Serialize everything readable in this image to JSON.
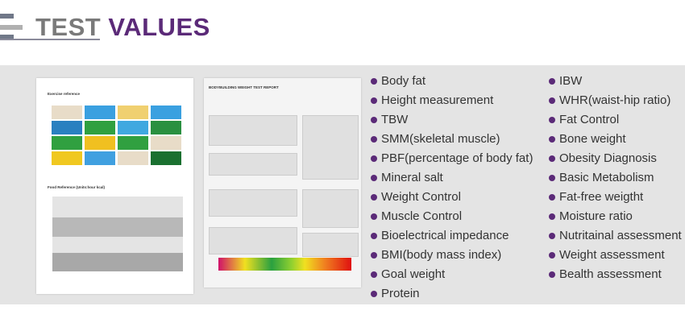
{
  "header": {
    "title_part1": "TEST",
    "title_part2": "VALUES",
    "accent": "#5b2a78"
  },
  "documents": {
    "left": {
      "section1": "Exercise reference",
      "section2": "Food Reference (Units:hour kcal)"
    },
    "right": {
      "title": "BODYBUILDING WEIGHT TEST REPORT"
    }
  },
  "list_left": [
    "Body fat",
    "Height measurement",
    "TBW",
    "SMM(skeletal muscle)",
    "PBF(percentage of body fat)",
    "Mineral salt",
    "Weight Control",
    "Muscle Control",
    "Bioelectrical impedance",
    "BMI(body mass index)",
    "Goal weight",
    "Protein"
  ],
  "list_right": [
    "IBW",
    "WHR(waist-hip ratio)",
    "Fat Control",
    "Bone weight",
    "Obesity Diagnosis",
    "Basic Metabolism",
    "Fat-free weigtht",
    "Moisture ratio",
    "Nutritainal assessment",
    "Weight assessment",
    "Bealth assessment"
  ]
}
